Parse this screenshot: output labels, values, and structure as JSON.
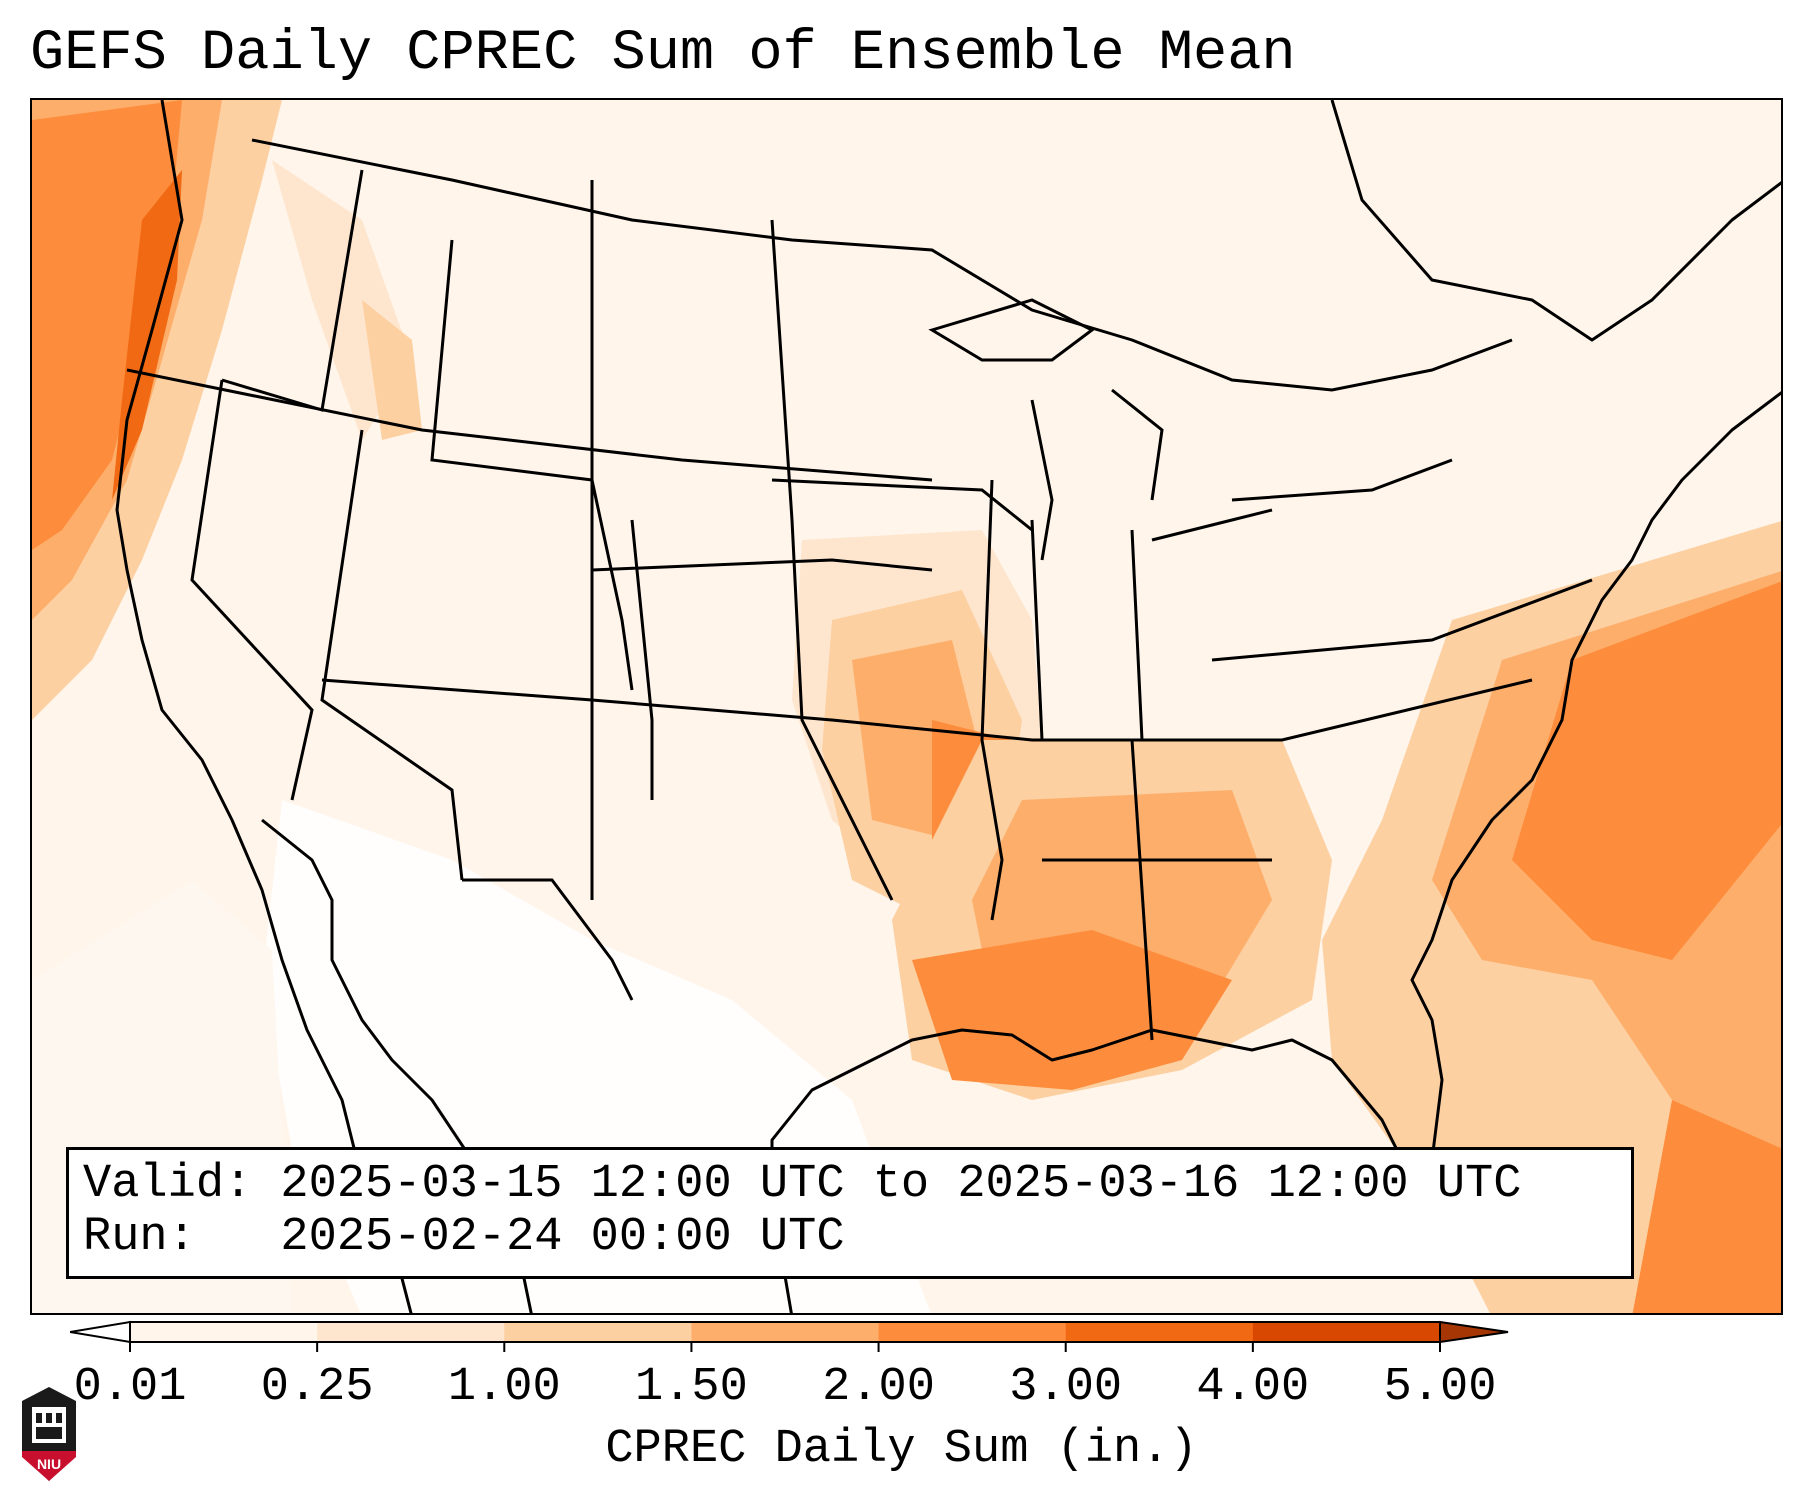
{
  "title": "GEFS Daily CPREC Sum of Ensemble Mean",
  "valid_line": "Valid: 2025-03-15 12:00 UTC to 2025-03-16 12:00 UTC",
  "run_line": "Run:   2025-02-24 00:00 UTC",
  "colorbar": {
    "label": "CPREC Daily Sum (in.)",
    "ticks": [
      "0.01",
      "0.25",
      "1.00",
      "1.50",
      "2.00",
      "3.00",
      "4.00",
      "5.00"
    ],
    "colors": [
      "#fff5eb",
      "#fee6ce",
      "#fdd0a2",
      "#fdae6b",
      "#fd8d3c",
      "#f16913",
      "#d94801"
    ],
    "extend": "both",
    "under_color": "#ffffff",
    "over_color": "#a63603"
  },
  "logo": {
    "icon": "niu-logo-icon",
    "text": "NIU",
    "color": "#c8102e"
  },
  "map": {
    "region": "Continental United States",
    "heavy_regions": [
      "Pacific Northwest coast",
      "Lower Mississippi Valley",
      "Gulf Coast",
      "Western Atlantic off Southeast coast"
    ]
  }
}
